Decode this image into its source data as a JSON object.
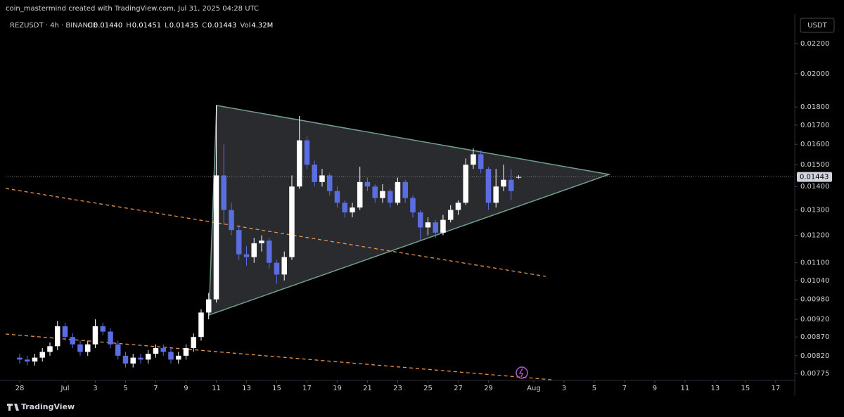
{
  "header": {
    "credit": "coin_mastermind created with TradingView.com, Jul 31, 2025 04:28 UTC",
    "symbol": "REZUSDT · 4h · BINANCE",
    "ohlc": [
      {
        "key": "O",
        "value": "0.01440"
      },
      {
        "key": "H",
        "value": "0.01451"
      },
      {
        "key": "L",
        "value": "0.01435"
      },
      {
        "key": "C",
        "value": "0.01443"
      },
      {
        "key": "Vol",
        "value": "4.32M"
      }
    ],
    "currency": "USDT",
    "footer": "TradingView"
  },
  "chart_data": {
    "type": "candlestick",
    "log_scale": true,
    "up_color": "#ffffff",
    "down_color": "#5b6ee1",
    "x": [
      0,
      0.5,
      1,
      1.5,
      2,
      2.5,
      3,
      3.5,
      4,
      4.5,
      5,
      5.5,
      6,
      6.5,
      7,
      7.5,
      8,
      8.5,
      9,
      9.5,
      10,
      10.5,
      11,
      11.5,
      12,
      12.5,
      13,
      13.5,
      14,
      14.5,
      15,
      15.5,
      16,
      16.5,
      17,
      17.5,
      18,
      18.5,
      19,
      19.5,
      20,
      20.5,
      21,
      21.5,
      22,
      22.5,
      23,
      23.5,
      24,
      24.5,
      25,
      25.5,
      26,
      26.5,
      27,
      27.5,
      28,
      28.5,
      29,
      29.5,
      30,
      30.5,
      31,
      31.5,
      32,
      32.5,
      33
    ],
    "open": [
      0.00815,
      0.0081,
      0.00805,
      0.00815,
      0.0083,
      0.00845,
      0.009,
      0.0087,
      0.0085,
      0.0083,
      0.0085,
      0.009,
      0.00885,
      0.0085,
      0.0082,
      0.008,
      0.00815,
      0.0081,
      0.00825,
      0.0084,
      0.0083,
      0.0081,
      0.0082,
      0.0084,
      0.0087,
      0.0094,
      0.0098,
      0.0145,
      0.013,
      0.0122,
      0.0113,
      0.0112,
      0.0117,
      0.0118,
      0.011,
      0.0106,
      0.0112,
      0.014,
      0.0162,
      0.015,
      0.0142,
      0.0145,
      0.0138,
      0.0133,
      0.0129,
      0.0131,
      0.0142,
      0.014,
      0.0135,
      0.0138,
      0.0133,
      0.0142,
      0.0135,
      0.0129,
      0.0123,
      0.0125,
      0.0121,
      0.0126,
      0.013,
      0.0133,
      0.015,
      0.0155,
      0.0148,
      0.0133,
      0.014,
      0.0143,
      0.0144
    ],
    "high": [
      0.00825,
      0.0082,
      0.00825,
      0.0084,
      0.00855,
      0.00915,
      0.0091,
      0.0088,
      0.0086,
      0.0086,
      0.0092,
      0.0091,
      0.00895,
      0.0086,
      0.0083,
      0.00825,
      0.00825,
      0.00835,
      0.0085,
      0.0085,
      0.0084,
      0.0083,
      0.0085,
      0.0088,
      0.0095,
      0.01,
      0.0181,
      0.016,
      0.0133,
      0.0124,
      0.0116,
      0.0119,
      0.012,
      0.0119,
      0.0111,
      0.0114,
      0.0145,
      0.0175,
      0.0164,
      0.0152,
      0.0148,
      0.0146,
      0.014,
      0.0134,
      0.0133,
      0.0149,
      0.0144,
      0.0141,
      0.0141,
      0.0139,
      0.0144,
      0.0143,
      0.0136,
      0.013,
      0.0127,
      0.0126,
      0.0128,
      0.0132,
      0.0134,
      0.0153,
      0.0158,
      0.0157,
      0.0149,
      0.0148,
      0.015,
      0.0148,
      0.01451
    ],
    "low": [
      0.008,
      0.00795,
      0.00795,
      0.00805,
      0.0082,
      0.00835,
      0.0086,
      0.0084,
      0.0082,
      0.0082,
      0.0084,
      0.00875,
      0.0084,
      0.0081,
      0.0079,
      0.0079,
      0.008,
      0.008,
      0.00815,
      0.0082,
      0.008,
      0.008,
      0.0081,
      0.0083,
      0.0086,
      0.0092,
      0.0097,
      0.0124,
      0.012,
      0.0111,
      0.0109,
      0.011,
      0.0114,
      0.0108,
      0.0103,
      0.0104,
      0.0111,
      0.0139,
      0.0148,
      0.014,
      0.014,
      0.0136,
      0.0131,
      0.0127,
      0.0127,
      0.013,
      0.0138,
      0.0133,
      0.0133,
      0.0131,
      0.0132,
      0.0133,
      0.0127,
      0.0118,
      0.012,
      0.0119,
      0.012,
      0.0125,
      0.0128,
      0.0132,
      0.0148,
      0.0146,
      0.013,
      0.0131,
      0.0138,
      0.0134,
      0.01435
    ],
    "close": [
      0.0081,
      0.00805,
      0.00815,
      0.0083,
      0.00845,
      0.009,
      0.0087,
      0.0085,
      0.0083,
      0.0085,
      0.009,
      0.00885,
      0.0085,
      0.0082,
      0.008,
      0.00815,
      0.0081,
      0.00825,
      0.0084,
      0.0083,
      0.0081,
      0.0082,
      0.0084,
      0.0087,
      0.0094,
      0.0098,
      0.0145,
      0.013,
      0.0122,
      0.0113,
      0.0112,
      0.0117,
      0.0118,
      0.011,
      0.0106,
      0.0112,
      0.014,
      0.0162,
      0.015,
      0.0142,
      0.0145,
      0.0138,
      0.0133,
      0.0129,
      0.0131,
      0.0142,
      0.014,
      0.0135,
      0.0138,
      0.0133,
      0.0142,
      0.0135,
      0.0129,
      0.0123,
      0.0125,
      0.0121,
      0.0126,
      0.013,
      0.0133,
      0.015,
      0.0155,
      0.0148,
      0.0133,
      0.014,
      0.0143,
      0.0138,
      0.01443
    ],
    "xlim": [
      -0.93,
      51.26
    ],
    "xticks": [
      {
        "value": 0,
        "label": "28"
      },
      {
        "value": 3,
        "label": "Jul"
      },
      {
        "value": 5,
        "label": "3"
      },
      {
        "value": 7,
        "label": "5"
      },
      {
        "value": 9,
        "label": "7"
      },
      {
        "value": 11,
        "label": "9"
      },
      {
        "value": 13,
        "label": "11"
      },
      {
        "value": 15,
        "label": "13"
      },
      {
        "value": 17,
        "label": "15"
      },
      {
        "value": 19,
        "label": "17"
      },
      {
        "value": 21,
        "label": "19"
      },
      {
        "value": 23,
        "label": "21"
      },
      {
        "value": 25,
        "label": "23"
      },
      {
        "value": 27,
        "label": "25"
      },
      {
        "value": 29,
        "label": "27"
      },
      {
        "value": 31,
        "label": "29"
      },
      {
        "value": 34,
        "label": "Aug"
      },
      {
        "value": 36,
        "label": "3"
      },
      {
        "value": 38,
        "label": "5"
      },
      {
        "value": 40,
        "label": "7"
      },
      {
        "value": 42,
        "label": "9"
      },
      {
        "value": 44,
        "label": "11"
      },
      {
        "value": 46,
        "label": "13"
      },
      {
        "value": 48,
        "label": "15"
      },
      {
        "value": 50,
        "label": "17"
      }
    ],
    "ylim": [
      0.00727,
      0.02415
    ],
    "yticks": [
      {
        "value": 0.022,
        "label": "0.02200"
      },
      {
        "value": 0.02,
        "label": "0.02000"
      },
      {
        "value": 0.018,
        "label": "0.01800"
      },
      {
        "value": 0.017,
        "label": "0.01700"
      },
      {
        "value": 0.016,
        "label": "0.01600"
      },
      {
        "value": 0.015,
        "label": "0.01500"
      },
      {
        "value": 0.014,
        "label": "0.01400"
      },
      {
        "value": 0.013,
        "label": "0.01300"
      },
      {
        "value": 0.012,
        "label": "0.01200"
      },
      {
        "value": 0.011,
        "label": "0.01100"
      },
      {
        "value": 0.0104,
        "label": "0.01040"
      },
      {
        "value": 0.0098,
        "label": "0.00980"
      },
      {
        "value": 0.0092,
        "label": "0.00920"
      },
      {
        "value": 0.0087,
        "label": "0.00870"
      },
      {
        "value": 0.0082,
        "label": "0.00820"
      },
      {
        "value": 0.00775,
        "label": "0.00775"
      }
    ],
    "price_line": {
      "value": 0.01443,
      "label": "0.01443"
    }
  }
}
